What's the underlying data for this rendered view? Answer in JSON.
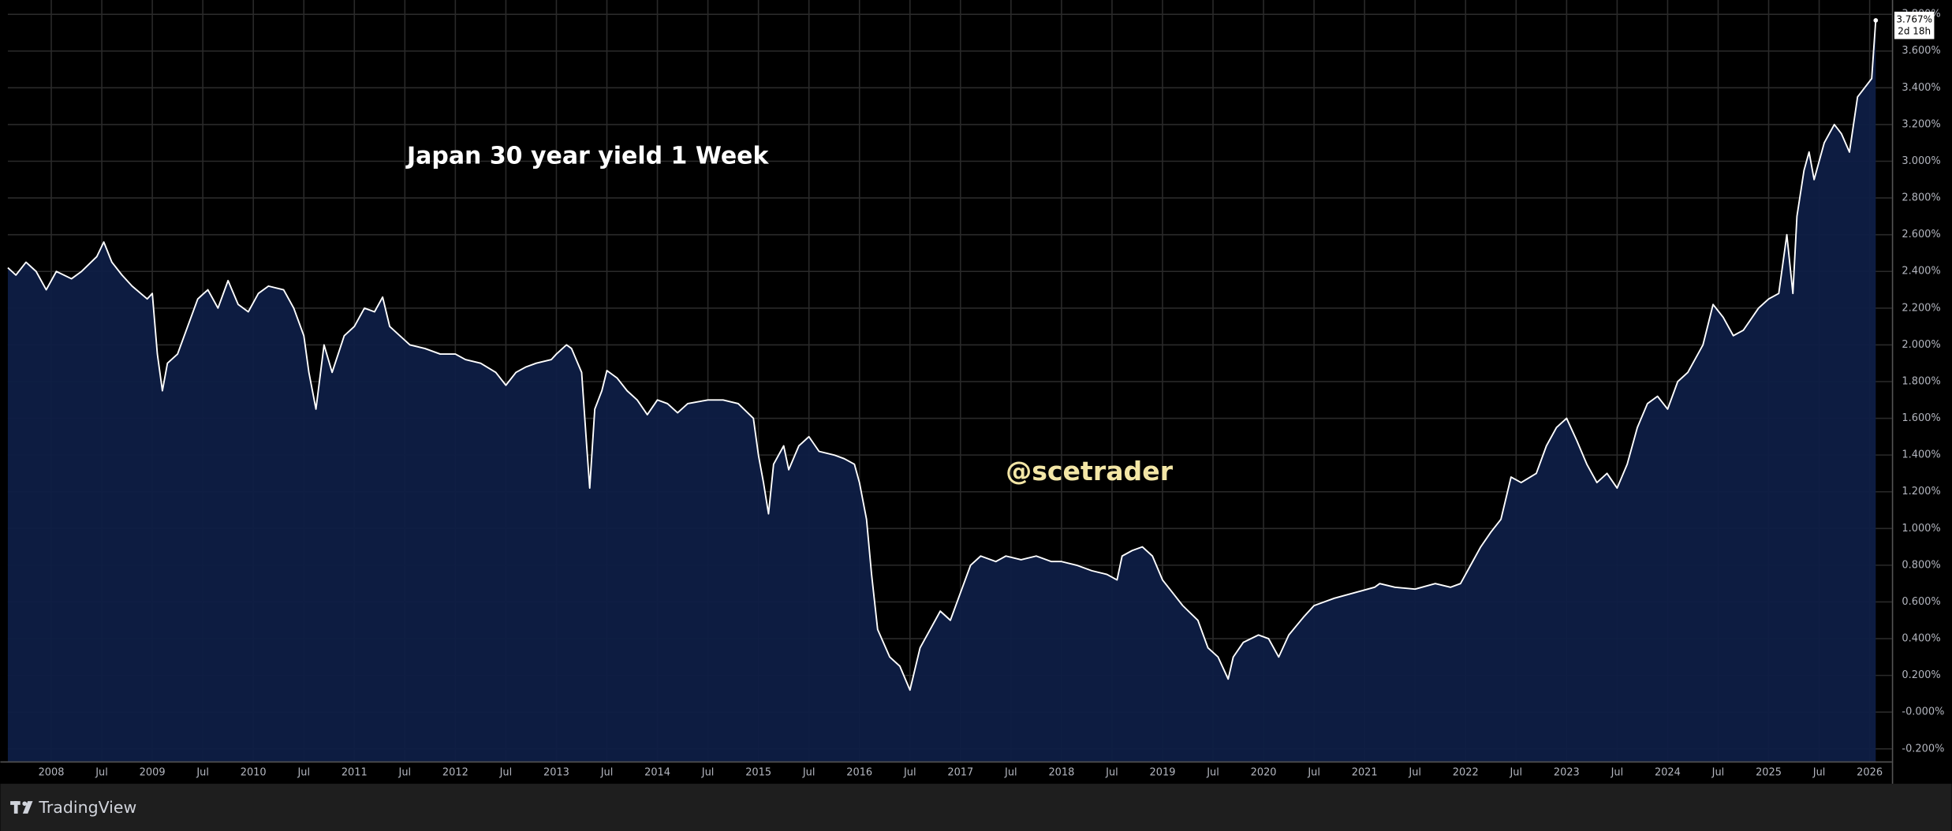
{
  "chart_data": {
    "type": "area",
    "title": "Japan 30 year yield 1 Week",
    "watermark": "@scetrader",
    "brand": "TradingView",
    "last_label": "3.767%",
    "countdown": "2d 18h",
    "color": "#ffffff",
    "fill_color": "#0e1e45",
    "grid": true,
    "xlim": [
      2007.57,
      2026.22
    ],
    "ylim": [
      -0.268,
      3.878
    ],
    "xticks": [
      2008,
      {
        "value": 2008.5,
        "label": "Jul"
      },
      2009,
      {
        "value": 2009.5,
        "label": "Jul"
      },
      2010,
      {
        "value": 2010.5,
        "label": "Jul"
      },
      2011,
      {
        "value": 2011.5,
        "label": "Jul"
      },
      2012,
      {
        "value": 2012.5,
        "label": "Jul"
      },
      2013,
      {
        "value": 2013.5,
        "label": "Jul"
      },
      2014,
      {
        "value": 2014.5,
        "label": "Jul"
      },
      2015,
      {
        "value": 2015.5,
        "label": "Jul"
      },
      2016,
      {
        "value": 2016.5,
        "label": "Jul"
      },
      2017,
      {
        "value": 2017.5,
        "label": "Jul"
      },
      2018,
      {
        "value": 2018.5,
        "label": "Jul"
      },
      2019,
      {
        "value": 2019.5,
        "label": "Jul"
      },
      2020,
      {
        "value": 2020.5,
        "label": "Jul"
      },
      2021,
      {
        "value": 2021.5,
        "label": "Jul"
      },
      2022,
      {
        "value": 2022.5,
        "label": "Jul"
      },
      2023,
      {
        "value": 2023.5,
        "label": "Jul"
      },
      2024,
      {
        "value": 2024.5,
        "label": "Jul"
      },
      2025,
      {
        "value": 2025.5,
        "label": "Jul"
      },
      2026
    ],
    "yticks": [
      {
        "value": -0.2,
        "label": "-0.200%"
      },
      {
        "value": 0,
        "label": "-0.000%"
      },
      {
        "value": 0.2,
        "label": "0.200%"
      },
      {
        "value": 0.4,
        "label": "0.400%"
      },
      {
        "value": 0.6,
        "label": "0.600%"
      },
      {
        "value": 0.8,
        "label": "0.800%"
      },
      {
        "value": 1.0,
        "label": "1.000%"
      },
      {
        "value": 1.2,
        "label": "1.200%"
      },
      {
        "value": 1.4,
        "label": "1.400%"
      },
      {
        "value": 1.6,
        "label": "1.600%"
      },
      {
        "value": 1.8,
        "label": "1.800%"
      },
      {
        "value": 2.0,
        "label": "2.000%"
      },
      {
        "value": 2.2,
        "label": "2.200%"
      },
      {
        "value": 2.4,
        "label": "2.400%"
      },
      {
        "value": 2.6,
        "label": "2.600%"
      },
      {
        "value": 2.8,
        "label": "2.800%"
      },
      {
        "value": 3.0,
        "label": "3.000%"
      },
      {
        "value": 3.2,
        "label": "3.200%"
      },
      {
        "value": 3.4,
        "label": "3.400%"
      },
      {
        "value": 3.6,
        "label": "3.600%"
      },
      {
        "value": 3.8,
        "label": "3.800%"
      }
    ],
    "x": [
      2007.57,
      2007.65,
      2007.75,
      2007.85,
      2007.95,
      2008.05,
      2008.2,
      2008.3,
      2008.45,
      2008.52,
      2008.6,
      2008.7,
      2008.8,
      2008.95,
      2009.0,
      2009.05,
      2009.1,
      2009.15,
      2009.25,
      2009.35,
      2009.45,
      2009.55,
      2009.65,
      2009.75,
      2009.85,
      2009.95,
      2010.05,
      2010.15,
      2010.3,
      2010.4,
      2010.5,
      2010.55,
      2010.62,
      2010.7,
      2010.78,
      2010.9,
      2011.0,
      2011.1,
      2011.2,
      2011.28,
      2011.35,
      2011.45,
      2011.55,
      2011.7,
      2011.85,
      2012.0,
      2012.1,
      2012.25,
      2012.4,
      2012.5,
      2012.6,
      2012.7,
      2012.8,
      2012.95,
      2013.0,
      2013.1,
      2013.15,
      2013.25,
      2013.3,
      2013.33,
      2013.38,
      2013.45,
      2013.5,
      2013.6,
      2013.7,
      2013.8,
      2013.9,
      2014.0,
      2014.1,
      2014.2,
      2014.3,
      2014.5,
      2014.65,
      2014.8,
      2014.95,
      2015.0,
      2015.05,
      2015.1,
      2015.15,
      2015.25,
      2015.3,
      2015.4,
      2015.5,
      2015.6,
      2015.75,
      2015.85,
      2015.95,
      2016.0,
      2016.07,
      2016.12,
      2016.18,
      2016.3,
      2016.4,
      2016.5,
      2016.6,
      2016.7,
      2016.8,
      2016.9,
      2017.0,
      2017.1,
      2017.2,
      2017.35,
      2017.45,
      2017.6,
      2017.75,
      2017.9,
      2018.0,
      2018.15,
      2018.3,
      2018.45,
      2018.55,
      2018.6,
      2018.7,
      2018.8,
      2018.9,
      2019.0,
      2019.1,
      2019.2,
      2019.35,
      2019.45,
      2019.55,
      2019.65,
      2019.7,
      2019.8,
      2019.95,
      2020.05,
      2020.15,
      2020.25,
      2020.4,
      2020.5,
      2020.7,
      2020.9,
      2021.1,
      2021.15,
      2021.3,
      2021.5,
      2021.7,
      2021.85,
      2021.95,
      2022.05,
      2022.15,
      2022.25,
      2022.35,
      2022.45,
      2022.55,
      2022.7,
      2022.8,
      2022.9,
      2023.0,
      2023.1,
      2023.2,
      2023.3,
      2023.4,
      2023.5,
      2023.6,
      2023.7,
      2023.8,
      2023.9,
      2024.0,
      2024.1,
      2024.2,
      2024.35,
      2024.45,
      2024.55,
      2024.65,
      2024.75,
      2024.9,
      2025.0,
      2025.1,
      2025.18,
      2025.24,
      2025.28,
      2025.35,
      2025.4,
      2025.45,
      2025.55,
      2025.65,
      2025.72,
      2025.8,
      2025.88,
      2025.95,
      2026.02,
      2026.06
    ],
    "values": [
      2.42,
      2.38,
      2.45,
      2.4,
      2.3,
      2.4,
      2.36,
      2.4,
      2.48,
      2.56,
      2.45,
      2.38,
      2.32,
      2.25,
      2.28,
      1.95,
      1.75,
      1.9,
      1.95,
      2.1,
      2.25,
      2.3,
      2.2,
      2.35,
      2.22,
      2.18,
      2.28,
      2.32,
      2.3,
      2.2,
      2.05,
      1.85,
      1.65,
      2.0,
      1.85,
      2.05,
      2.1,
      2.2,
      2.18,
      2.26,
      2.1,
      2.05,
      2.0,
      1.98,
      1.95,
      1.95,
      1.92,
      1.9,
      1.85,
      1.78,
      1.85,
      1.88,
      1.9,
      1.92,
      1.95,
      2.0,
      1.98,
      1.85,
      1.45,
      1.22,
      1.65,
      1.75,
      1.86,
      1.82,
      1.75,
      1.7,
      1.62,
      1.7,
      1.68,
      1.63,
      1.68,
      1.7,
      1.7,
      1.68,
      1.6,
      1.4,
      1.25,
      1.08,
      1.35,
      1.45,
      1.32,
      1.45,
      1.5,
      1.42,
      1.4,
      1.38,
      1.35,
      1.25,
      1.05,
      0.75,
      0.45,
      0.3,
      0.25,
      0.12,
      0.35,
      0.45,
      0.55,
      0.5,
      0.65,
      0.8,
      0.85,
      0.82,
      0.85,
      0.83,
      0.85,
      0.82,
      0.82,
      0.8,
      0.77,
      0.75,
      0.72,
      0.85,
      0.88,
      0.9,
      0.85,
      0.72,
      0.65,
      0.58,
      0.5,
      0.35,
      0.3,
      0.18,
      0.3,
      0.38,
      0.42,
      0.4,
      0.3,
      0.42,
      0.52,
      0.58,
      0.62,
      0.65,
      0.68,
      0.7,
      0.68,
      0.67,
      0.7,
      0.68,
      0.7,
      0.8,
      0.9,
      0.98,
      1.05,
      1.28,
      1.25,
      1.3,
      1.45,
      1.55,
      1.6,
      1.48,
      1.35,
      1.25,
      1.3,
      1.22,
      1.35,
      1.55,
      1.68,
      1.72,
      1.65,
      1.8,
      1.85,
      2.0,
      2.22,
      2.15,
      2.05,
      2.08,
      2.2,
      2.25,
      2.28,
      2.6,
      2.28,
      2.7,
      2.95,
      3.05,
      2.9,
      3.1,
      3.2,
      3.15,
      3.05,
      3.35,
      3.4,
      3.45,
      3.767
    ]
  }
}
